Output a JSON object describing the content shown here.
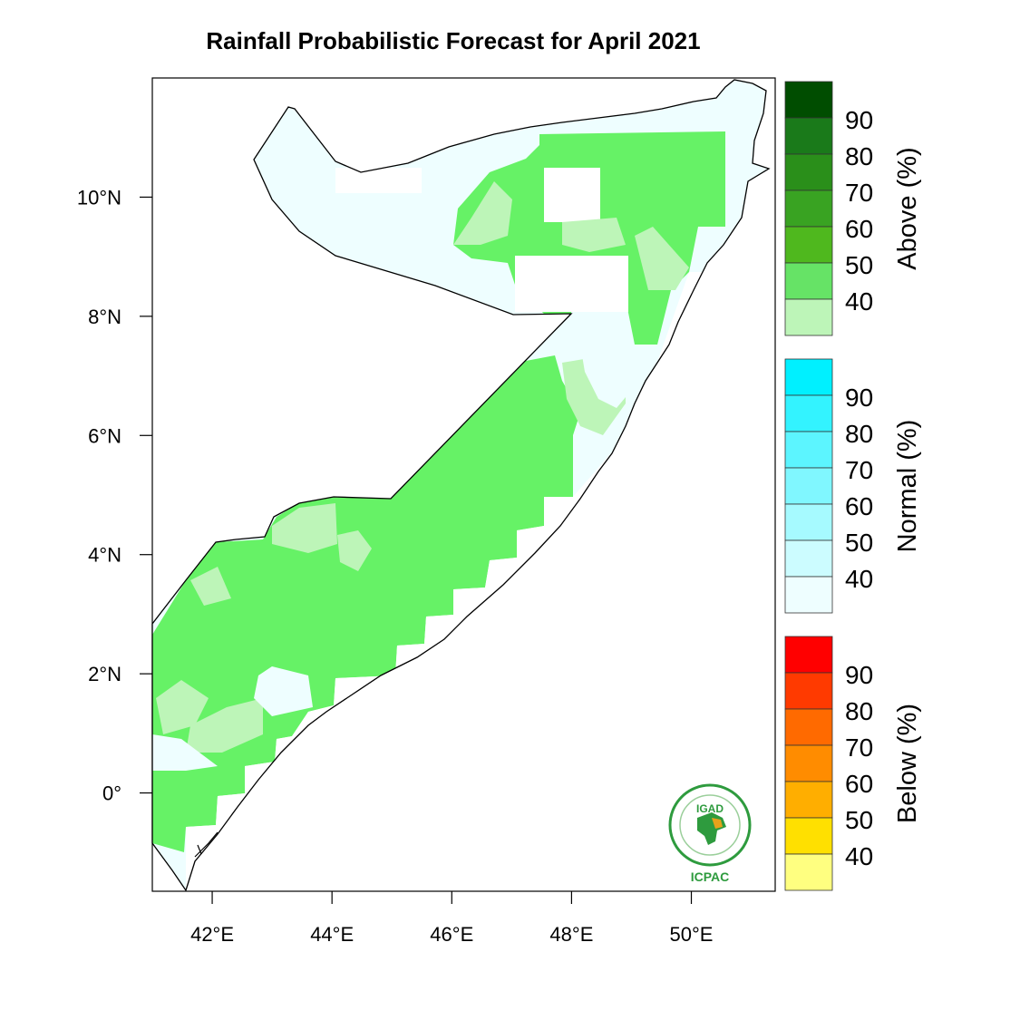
{
  "title": "Rainfall Probabilistic Forecast for April 2021",
  "map": {
    "lat_ticks": [
      "10°N",
      "8°N",
      "6°N",
      "4°N",
      "2°N",
      "0°"
    ],
    "lon_ticks": [
      "42°E",
      "44°E",
      "46°E",
      "48°E",
      "50°E"
    ],
    "lat_values": [
      10,
      8,
      6,
      4,
      2,
      0
    ],
    "lon_values": [
      42,
      44,
      46,
      48,
      50
    ],
    "lon_range": [
      41.0,
      51.4
    ],
    "lat_range": [
      -1.65,
      12.0
    ]
  },
  "legend": [
    {
      "title": "Above (%)",
      "labels": [
        "90",
        "80",
        "70",
        "60",
        "50",
        "40"
      ],
      "colors": [
        "#004d00",
        "#1a7a1a",
        "#2a8f1a",
        "#39a322",
        "#4fb81e",
        "#66e366",
        "#bdf5b8"
      ]
    },
    {
      "title": "Normal (%)",
      "labels": [
        "90",
        "80",
        "70",
        "60",
        "50",
        "40"
      ],
      "colors": [
        "#00f0ff",
        "#33f3ff",
        "#5cf5ff",
        "#80f7ff",
        "#a6faff",
        "#ccfcff",
        "#eefeff"
      ]
    },
    {
      "title": "Below (%)",
      "labels": [
        "90",
        "80",
        "70",
        "60",
        "50",
        "40"
      ],
      "colors": [
        "#ff0000",
        "#ff3a00",
        "#ff6a00",
        "#ff8c00",
        "#ffae00",
        "#ffe000",
        "#ffff80"
      ]
    }
  ],
  "forecast_colors": {
    "above_40": "#66f266",
    "above_low": "#bdf5b8",
    "normal_low": "#eefeff"
  },
  "logo": {
    "top_text": "IGAD",
    "bottom_text": "ICPAC"
  }
}
